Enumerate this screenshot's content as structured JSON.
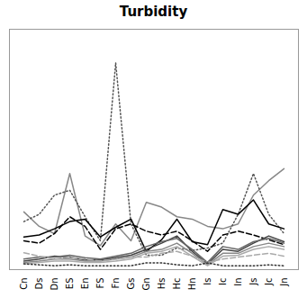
{
  "chart_data": {
    "type": "line",
    "title": "Turbidity",
    "categories": [
      "Cn",
      "Ds",
      "Dn",
      "ES",
      "En",
      "FS",
      "Fn",
      "Gs",
      "Gn",
      "Hs",
      "Hc",
      "Hn",
      "Is",
      "Ic",
      "In",
      "Js",
      "Jc",
      "Jn"
    ],
    "series": [
      {
        "color": "#888888",
        "line_style": "solid",
        "values": [
          120,
          90,
          75,
          200,
          70,
          50,
          95,
          60,
          140,
          130,
          110,
          105,
          90,
          85,
          95,
          155,
          185,
          210
        ]
      },
      {
        "color": "#555555",
        "line_style": "dotted",
        "values": [
          100,
          115,
          155,
          165,
          110,
          60,
          430,
          95,
          30,
          30,
          45,
          40,
          45,
          55,
          115,
          200,
          115,
          75
        ]
      },
      {
        "color": "#000000",
        "line_style": "dashed",
        "values": [
          60,
          55,
          75,
          110,
          90,
          42,
          85,
          95,
          80,
          72,
          80,
          60,
          38,
          72,
          80,
          72,
          62,
          52
        ]
      },
      {
        "color": "#000000",
        "line_style": "solid",
        "values": [
          68,
          72,
          85,
          100,
          105,
          68,
          88,
          105,
          38,
          62,
          105,
          58,
          52,
          125,
          115,
          145,
          95,
          85
        ]
      },
      {
        "color": "#444444",
        "line_style": "solid",
        "values": [
          18,
          22,
          28,
          26,
          20,
          20,
          25,
          30,
          42,
          55,
          70,
          38,
          12,
          42,
          38,
          55,
          70,
          58
        ]
      },
      {
        "color": "#666666",
        "line_style": "solid",
        "values": [
          22,
          26,
          26,
          30,
          25,
          22,
          28,
          34,
          48,
          58,
          65,
          42,
          15,
          48,
          42,
          58,
          65,
          55
        ]
      },
      {
        "color": "#888888",
        "line_style": "solid",
        "values": [
          15,
          18,
          22,
          22,
          18,
          18,
          22,
          26,
          38,
          42,
          55,
          34,
          10,
          34,
          34,
          48,
          55,
          48
        ]
      },
      {
        "color": "#aaaaaa",
        "line_style": "solid",
        "values": [
          12,
          15,
          18,
          18,
          15,
          15,
          18,
          22,
          34,
          38,
          48,
          28,
          8,
          28,
          30,
          42,
          48,
          42
        ]
      },
      {
        "color": "#aaaaaa",
        "line_style": "dashed",
        "values": [
          35,
          28,
          22,
          26,
          22,
          18,
          22,
          26,
          26,
          34,
          38,
          28,
          15,
          22,
          26,
          30,
          34,
          28
        ]
      },
      {
        "color": "#333333",
        "line_style": "dotted",
        "values": [
          12,
          10,
          8,
          10,
          8,
          8,
          8,
          8,
          14,
          14,
          10,
          8,
          14,
          8,
          8,
          8,
          10,
          8
        ]
      }
    ],
    "ylim": [
      0,
      500
    ],
    "tick_labels": "x"
  }
}
